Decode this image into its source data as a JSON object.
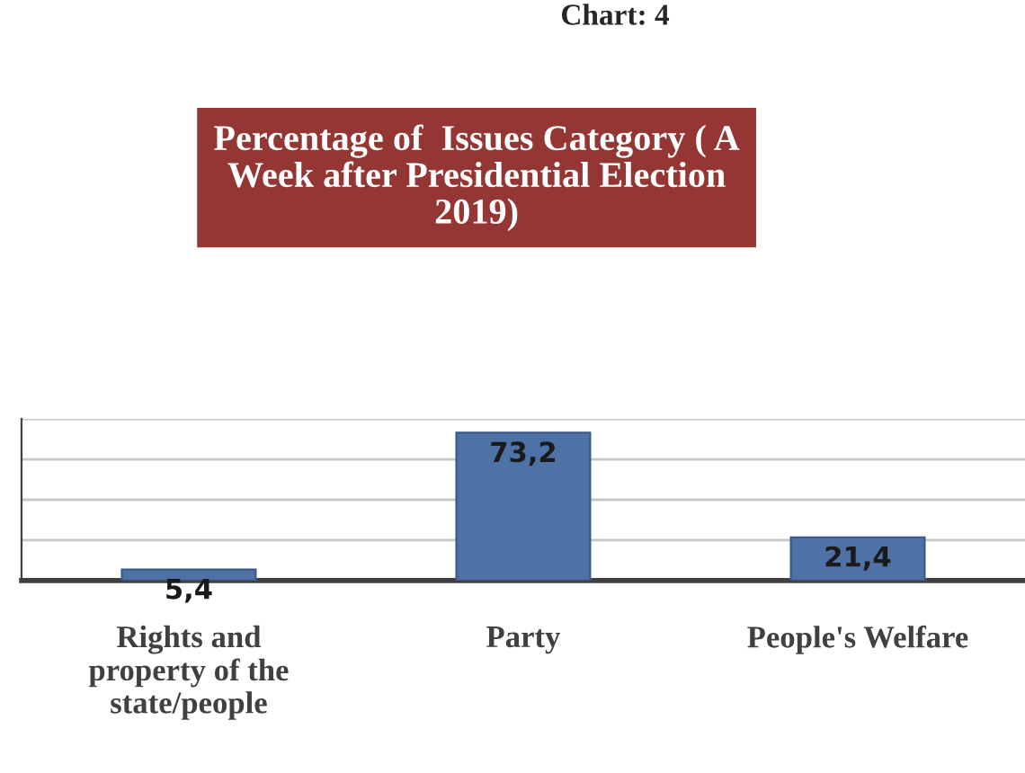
{
  "chart_data": {
    "type": "bar",
    "title": "Percentage of  Issues Category ( A Week after Presidential Election 2019)",
    "annotations": [
      "Chart: 4"
    ],
    "categories": [
      "Rights and property of the state/people",
      "Party",
      "People's Welfare"
    ],
    "values": [
      5.4,
      73.2,
      21.4
    ],
    "value_labels": [
      "5,4",
      "73,2",
      "21,4"
    ],
    "color": "#4e72a6",
    "ylim": [
      0,
      80
    ],
    "yticks": [
      {
        "value": 0,
        "label": null
      },
      {
        "value": 20,
        "label": null
      },
      {
        "value": 40,
        "label": null
      },
      {
        "value": 60,
        "label": null
      },
      {
        "value": 80,
        "label": null
      }
    ],
    "grid": "y",
    "tick_labels": "x"
  }
}
